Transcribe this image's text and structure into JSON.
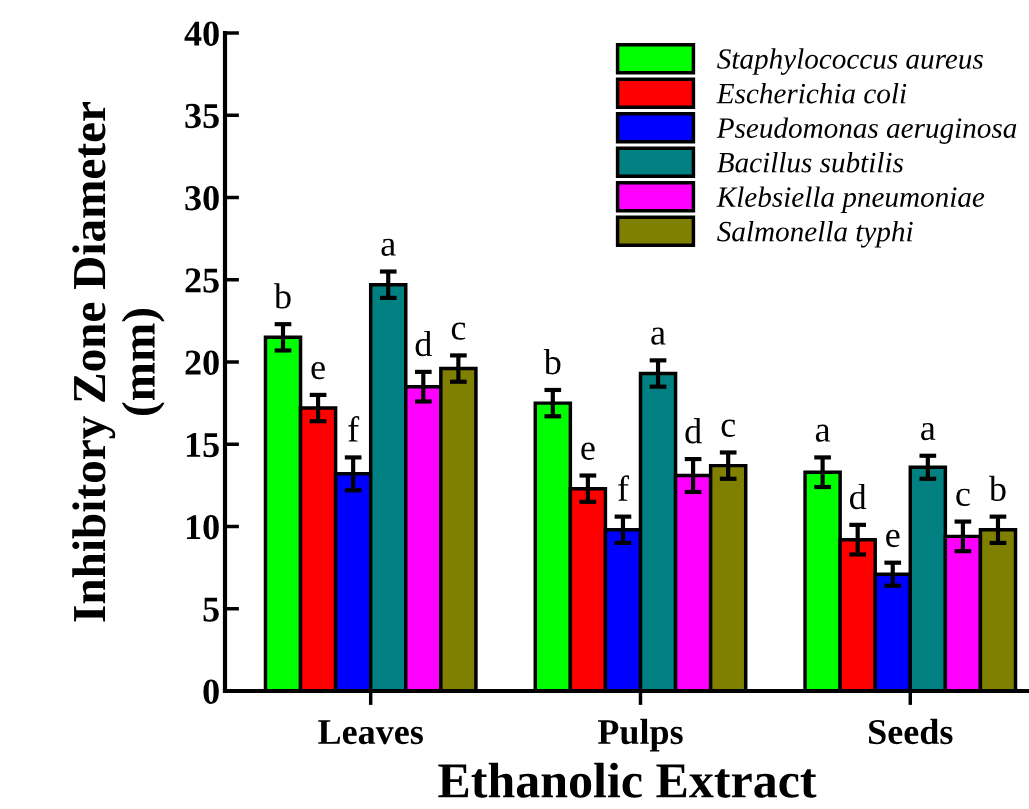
{
  "chart_data": {
    "type": "bar",
    "xlabel": "Ethanolic Extract",
    "ylabel": "Inhibitory Zone Diameter\n(mm)",
    "categories": [
      "Leaves",
      "Pulps",
      "Seeds"
    ],
    "ylim": [
      0,
      40
    ],
    "yticks": [
      0,
      5,
      10,
      15,
      20,
      25,
      30,
      35,
      40
    ],
    "legend": "top right",
    "grid": false,
    "series": [
      {
        "name": "Staphylococcus aureus",
        "color": "#00ff00",
        "values": [
          21.5,
          17.5,
          13.3
        ],
        "errors": [
          0.8,
          0.8,
          0.9
        ]
      },
      {
        "name": "Escherichia coli",
        "color": "#ff0000",
        "values": [
          17.2,
          12.3,
          9.2
        ],
        "errors": [
          0.8,
          0.8,
          0.9
        ]
      },
      {
        "name": "Pseudomonas aeruginosa",
        "color": "#0000ff",
        "values": [
          13.2,
          9.8,
          7.1
        ],
        "errors": [
          1.0,
          0.8,
          0.7
        ]
      },
      {
        "name": "Bacillus subtilis",
        "color": "#008080",
        "values": [
          24.7,
          19.3,
          13.6
        ],
        "errors": [
          0.8,
          0.8,
          0.7
        ]
      },
      {
        "name": "Klebsiella pneumoniae",
        "color": "#ff00ff",
        "values": [
          18.5,
          13.1,
          9.4
        ],
        "errors": [
          0.9,
          1.0,
          0.9
        ]
      },
      {
        "name": "Salmonella typhi",
        "color": "#808000",
        "values": [
          19.6,
          13.7,
          9.8
        ],
        "errors": [
          0.8,
          0.8,
          0.8
        ]
      }
    ],
    "annotations": [
      "b",
      "e",
      "f",
      "a",
      "d",
      "c",
      "b",
      "e",
      "f",
      "a",
      "d",
      "c",
      "a",
      "d",
      "e",
      "a",
      "c",
      "b"
    ]
  }
}
